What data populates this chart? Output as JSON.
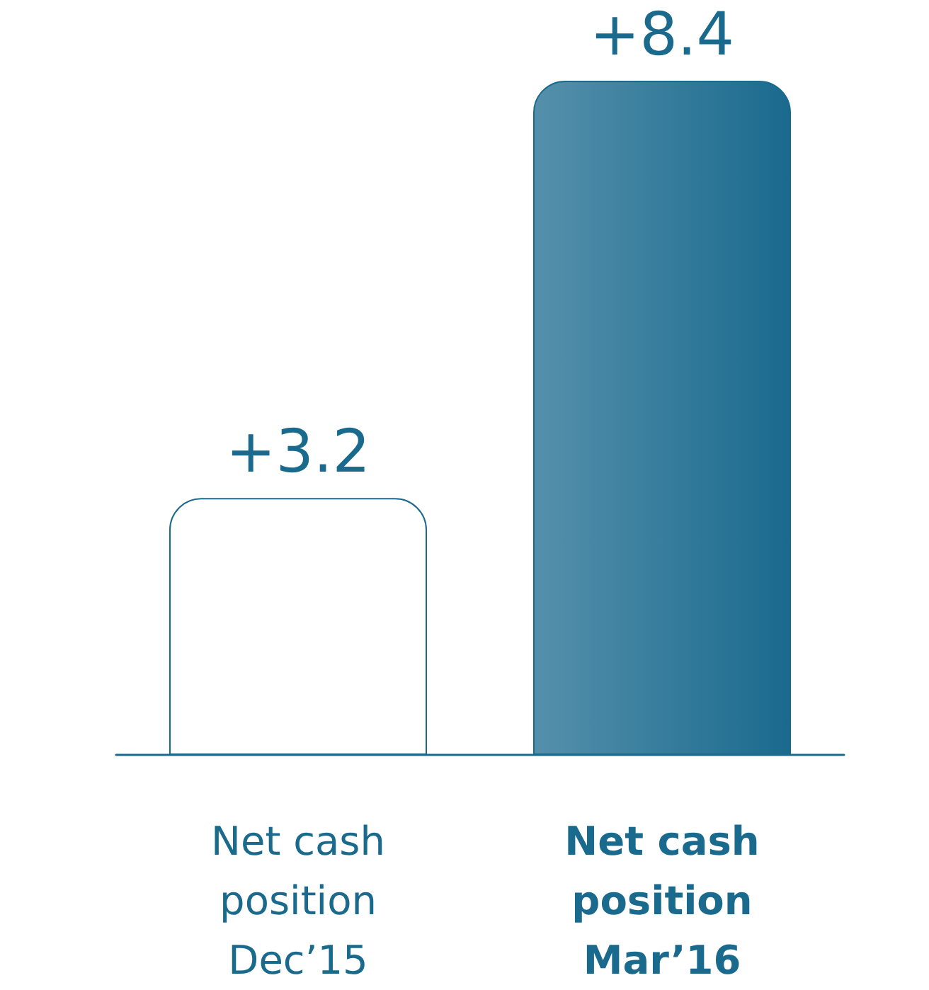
{
  "chart_data": {
    "type": "bar",
    "categories": [
      "Net cash\nposition\nDec’15",
      "Net cash\nposition\nMar’16"
    ],
    "values": [
      3.2,
      8.4
    ],
    "colors": [
      "#ffffff",
      "#1a6a8e"
    ],
    "value_labels": [
      "+3.2",
      "+8.4"
    ],
    "grid": false
  }
}
